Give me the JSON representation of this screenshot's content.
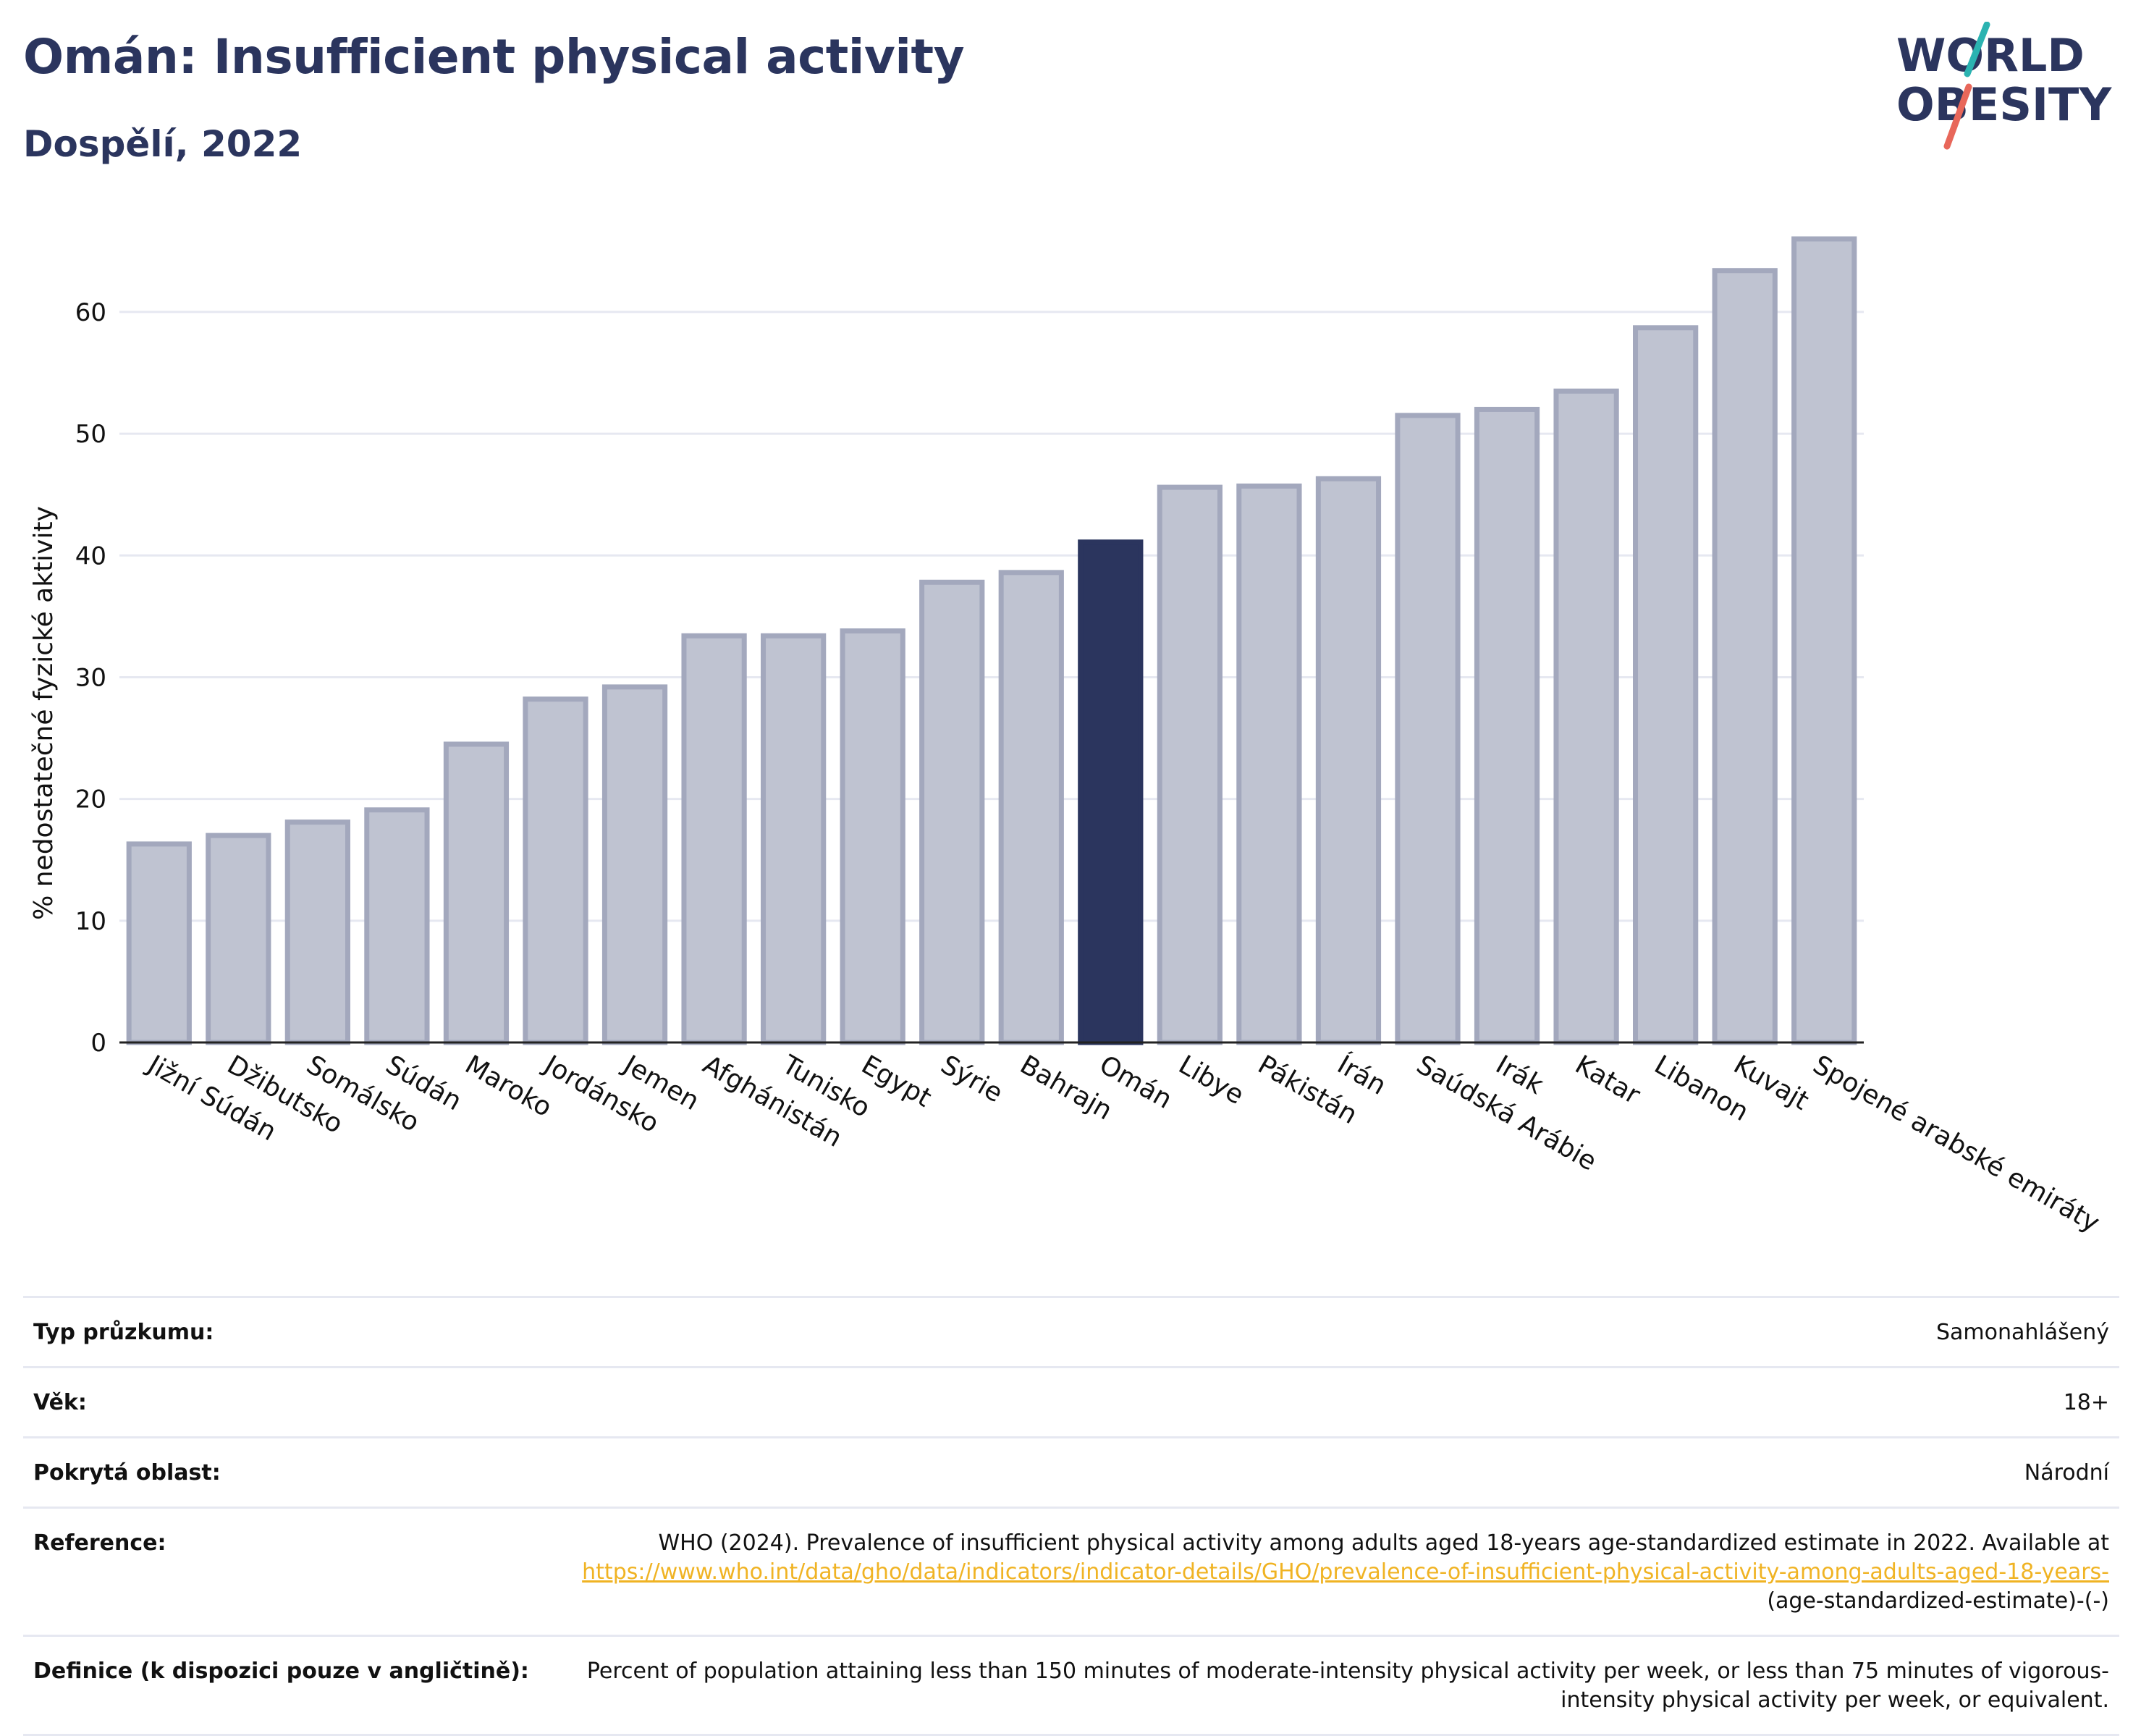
{
  "header": {
    "title": "Omán: Insufficient physical activity",
    "subtitle": "Dospělí, 2022"
  },
  "logo": {
    "line1": "WORLD",
    "line2": "OBESITY",
    "colors": {
      "text": "#2b355e",
      "slash_red": "#e8675a",
      "slash_teal": "#2bb3b1"
    }
  },
  "colors": {
    "bar_default": "#bfc3d1",
    "bar_default_stroke": "#a3a8bd",
    "bar_highlight": "#2b355e",
    "grid": "#e6e8f1",
    "text": "#111111"
  },
  "chart_data": {
    "type": "bar",
    "ylabel": "% nedostatečné fyzické aktivity",
    "xlabel": "",
    "ylim": [
      0,
      66
    ],
    "yticks": [
      0,
      10,
      20,
      30,
      40,
      50,
      60
    ],
    "grid": true,
    "highlight": "Omán",
    "categories": [
      "Jižní Súdán",
      "Džibutsko",
      "Somálsko",
      "Súdán",
      "Maroko",
      "Jordánsko",
      "Jemen",
      "Afghánistán",
      "Tunisko",
      "Egypt",
      "Sýrie",
      "Bahrajn",
      "Omán",
      "Libye",
      "Pákistán",
      "Írán",
      "Saúdská Arábie",
      "Irák",
      "Katar",
      "Libanon",
      "Kuvajt",
      "Spojené arabské emiráty"
    ],
    "values": [
      16.3,
      17.0,
      18.1,
      19.1,
      24.5,
      28.2,
      29.2,
      33.4,
      33.4,
      33.8,
      37.8,
      38.6,
      41.1,
      45.6,
      45.7,
      46.3,
      51.5,
      52.0,
      53.5,
      58.7,
      63.4,
      66.0
    ]
  },
  "meta": {
    "survey_label": "Typ průzkumu:",
    "survey_value": "Samonahlášený",
    "age_label": "Věk:",
    "age_value": "18+",
    "coverage_label": "Pokrytá oblast:",
    "coverage_value": "Národní",
    "reference_label": "Reference:",
    "reference_text": "WHO (2024). Prevalence of insufficient physical activity among adults aged 18-years age-standardized estimate in 2022. Available at",
    "reference_link": "https://www.who.int/data/gho/data/indicators/indicator-details/GHO/prevalence-of-insufficient-physical-activity-among-adults-aged-18-years-",
    "reference_suffix": "(age-standardized-estimate)-(-)",
    "definition_label": "Definice (k dispozici pouze v angličtině):",
    "definition_value": "Percent of population attaining less than 150 minutes of moderate-intensity physical activity per week, or less than 75 minutes of vigorous-intensity physical activity per week, or equivalent."
  }
}
